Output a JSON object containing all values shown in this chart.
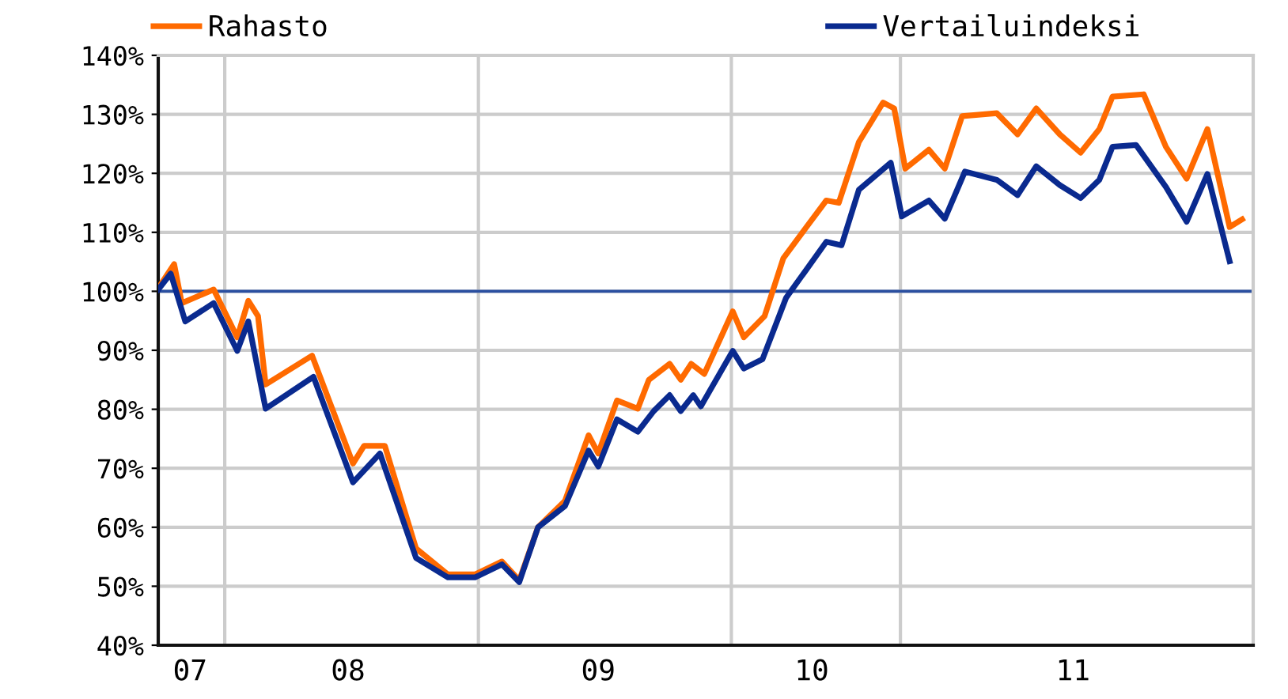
{
  "chart_data": {
    "type": "line",
    "series": [
      {
        "name": "Rahasto",
        "color": "#ff6a00",
        "x": [
          "2007-09-27",
          "2007-10-20",
          "2007-10-31",
          "2007-12-16",
          "2008-01-19",
          "2008-02-04",
          "2008-02-18",
          "2008-02-29",
          "2008-05-06",
          "2008-07-04",
          "2008-07-20",
          "2008-08-19",
          "2008-10-03",
          "2008-11-18",
          "2008-12-27",
          "2009-02-04",
          "2009-03-01",
          "2009-03-28",
          "2009-05-06",
          "2009-06-09",
          "2009-06-23",
          "2009-07-20",
          "2009-08-19",
          "2009-09-04",
          "2009-10-04",
          "2009-10-20",
          "2009-11-04",
          "2009-11-23",
          "2010-01-03",
          "2010-01-19",
          "2010-02-18",
          "2010-03-17",
          "2010-04-20",
          "2010-05-18",
          "2010-06-05",
          "2010-07-04",
          "2010-08-08",
          "2010-08-24",
          "2010-09-09",
          "2010-10-13",
          "2010-11-05",
          "2010-11-30",
          "2011-01-19",
          "2011-02-18",
          "2011-03-17",
          "2011-04-20",
          "2011-05-20",
          "2011-06-16",
          "2011-07-05",
          "2011-08-19",
          "2011-09-20",
          "2011-10-20",
          "2011-11-19",
          "2011-12-21",
          "2012-01-08"
        ],
        "values": [
          100.5,
          104.6,
          98,
          100.3,
          92.2,
          98.4,
          95.8,
          84.2,
          89.1,
          70.8,
          73.8,
          73.8,
          56.4,
          52,
          52,
          54.2,
          51,
          60,
          64.5,
          75.6,
          72.5,
          81.5,
          80.1,
          85,
          87.7,
          85,
          87.7,
          86,
          96.6,
          92.2,
          95.8,
          105.6,
          111,
          115.4,
          115,
          125.3,
          132,
          131,
          120.8,
          124,
          120.8,
          129.7,
          130.2,
          126.6,
          131,
          126.6,
          123.5,
          127.5,
          133,
          133.4,
          124.5,
          119.1,
          127.5,
          110.9,
          112.2
        ]
      },
      {
        "name": "Vertailuindeksi",
        "color": "#0a2a8f",
        "x": [
          "2007-09-27",
          "2007-10-15",
          "2007-11-05",
          "2007-12-16",
          "2008-01-19",
          "2008-02-04",
          "2008-02-29",
          "2008-05-08",
          "2008-07-04",
          "2008-08-12",
          "2008-10-03",
          "2008-11-18",
          "2008-12-27",
          "2009-02-04",
          "2009-03-01",
          "2009-03-28",
          "2009-05-06",
          "2009-06-09",
          "2009-06-23",
          "2009-07-20",
          "2009-08-19",
          "2009-09-11",
          "2009-10-04",
          "2009-10-20",
          "2009-11-07",
          "2009-11-18",
          "2010-01-03",
          "2010-01-19",
          "2010-02-15",
          "2010-03-21",
          "2010-04-20",
          "2010-05-18",
          "2010-06-09",
          "2010-07-04",
          "2010-08-19",
          "2010-09-04",
          "2010-10-13",
          "2010-11-05",
          "2010-12-04",
          "2011-01-19",
          "2011-02-18",
          "2011-03-17",
          "2011-04-20",
          "2011-05-20",
          "2011-06-16",
          "2011-07-05",
          "2011-08-08",
          "2011-09-20",
          "2011-10-20",
          "2011-11-19",
          "2011-12-21"
        ],
        "values": [
          100.3,
          103,
          94.9,
          98,
          89.9,
          94.9,
          80.1,
          85.5,
          67.6,
          72.5,
          54.8,
          51.5,
          51.5,
          53.7,
          50.7,
          60,
          63.6,
          73,
          70.3,
          78.3,
          76.2,
          79.7,
          82.4,
          79.7,
          82.4,
          80.5,
          89.9,
          86.9,
          88.5,
          98.9,
          103.8,
          108.4,
          107.8,
          117.2,
          121.8,
          112.7,
          115.4,
          112.3,
          120.3,
          118.9,
          116.3,
          121.2,
          118,
          115.8,
          118.9,
          124.5,
          124.8,
          117.7,
          111.8,
          119.9,
          105.1
        ]
      }
    ],
    "xlim": [
      "2007-09-27",
      "2012-01-24"
    ],
    "xticks": [
      {
        "value": "2007-11-12",
        "label": "07"
      },
      {
        "value": "2008-01-01",
        "label": null
      },
      {
        "value": "2008-06-27",
        "label": "08"
      },
      {
        "value": "2009-01-01",
        "label": null
      },
      {
        "value": "2009-06-23",
        "label": "09"
      },
      {
        "value": "2010-01-01",
        "label": null
      },
      {
        "value": "2010-04-27",
        "label": "10"
      },
      {
        "value": "2010-09-02",
        "label": null
      },
      {
        "value": "2011-05-09",
        "label": "11"
      }
    ],
    "ylim": [
      40,
      140
    ],
    "yticks": [
      {
        "value": 40,
        "label": "40%"
      },
      {
        "value": 50,
        "label": "50%"
      },
      {
        "value": 60,
        "label": "60%"
      },
      {
        "value": 70,
        "label": "70%"
      },
      {
        "value": 80,
        "label": "80%"
      },
      {
        "value": 90,
        "label": "90%"
      },
      {
        "value": 100,
        "label": "100%"
      },
      {
        "value": 110,
        "label": "110%"
      },
      {
        "value": 120,
        "label": "120%"
      },
      {
        "value": 130,
        "label": "130%"
      },
      {
        "value": 140,
        "label": "140%"
      }
    ],
    "ref_lines": [
      {
        "axis": "y",
        "value": 100,
        "color": "#2a4fa0"
      }
    ],
    "grid": true,
    "legend": "top",
    "marker": "none",
    "line_style": "solid"
  }
}
